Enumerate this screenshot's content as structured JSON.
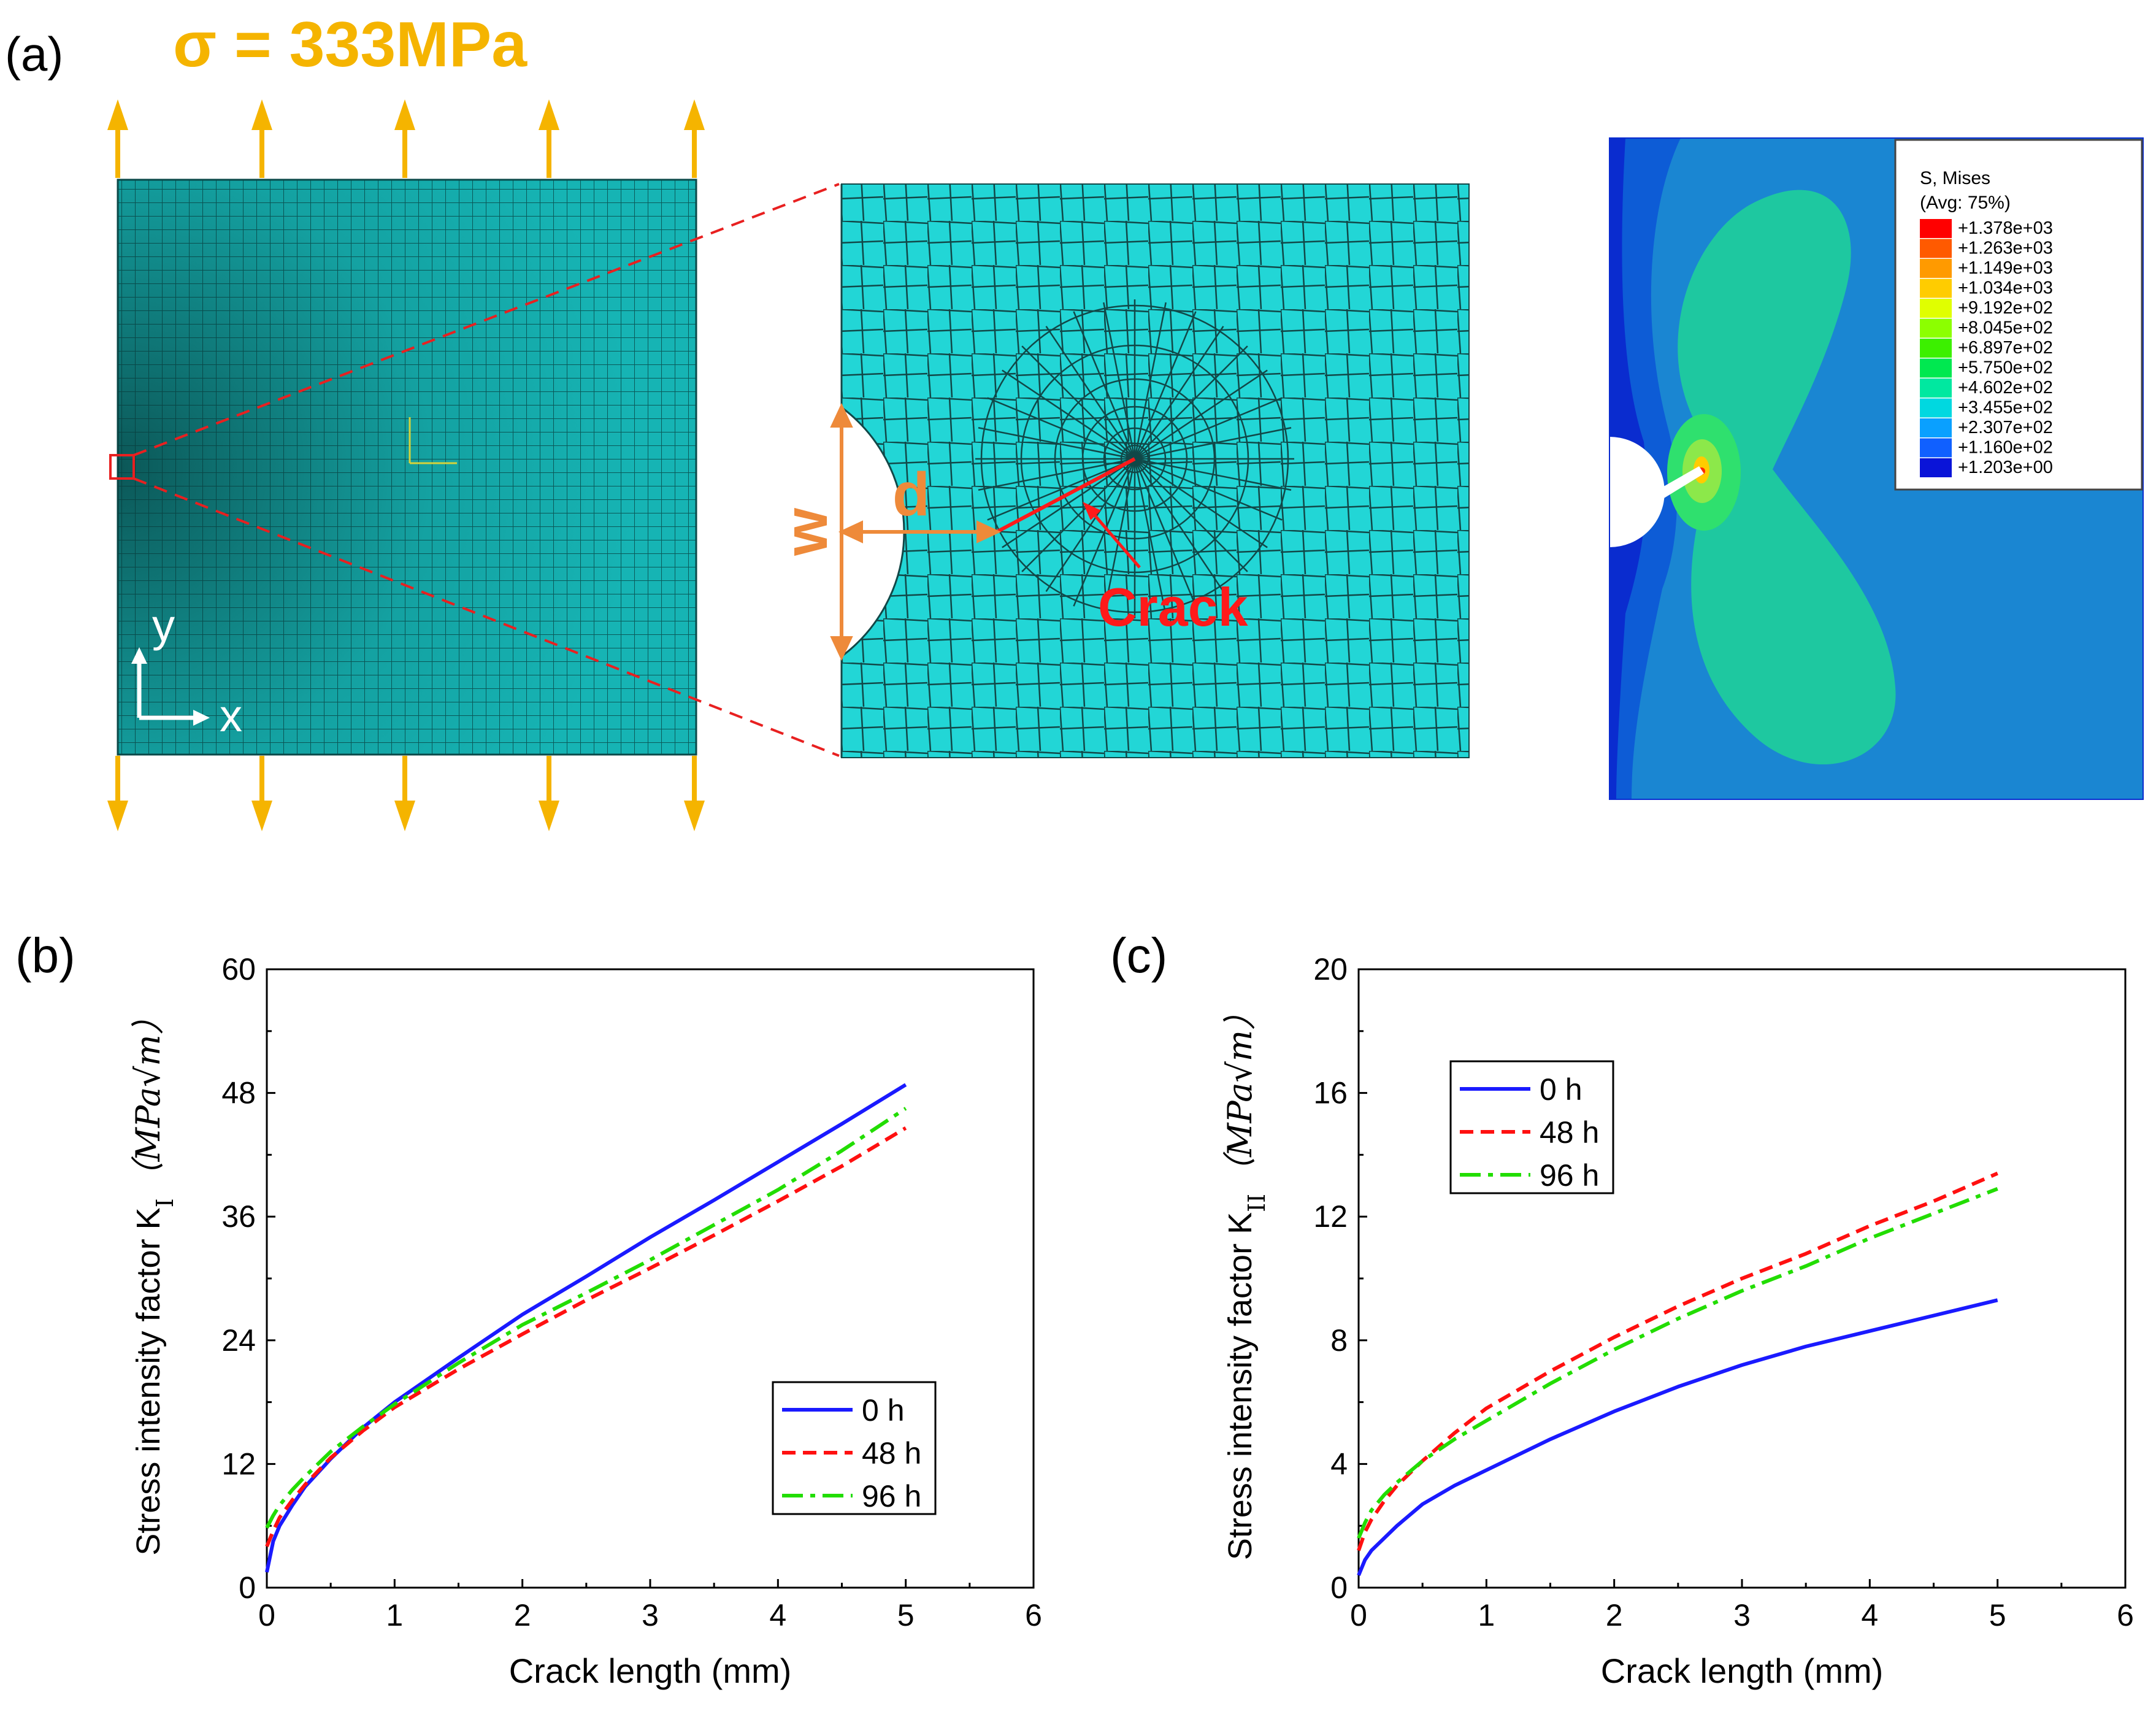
{
  "panel_a": {
    "label": "(a)",
    "load_label": "σ = 333MPa",
    "axis_y": "y",
    "axis_x": "x",
    "dim_w": "w",
    "dim_d": "d",
    "crack_label": "Crack",
    "legend": {
      "title": "S, Mises",
      "subtitle": "(Avg: 75%)",
      "entries": [
        "+1.378e+03",
        "+1.263e+03",
        "+1.149e+03",
        "+1.034e+03",
        "+9.192e+02",
        "+8.045e+02",
        "+6.897e+02",
        "+5.750e+02",
        "+4.602e+02",
        "+3.455e+02",
        "+2.307e+02",
        "+1.160e+02",
        "+1.203e+00"
      ],
      "colors": [
        "#ff0000",
        "#ff5a00",
        "#ff9a00",
        "#ffcc00",
        "#e0ff00",
        "#8cff00",
        "#3cf000",
        "#00e850",
        "#00e8a0",
        "#00d8e0",
        "#0aa0ff",
        "#1060ff",
        "#0a14d8"
      ]
    },
    "colors": {
      "mesh_bg": "#16b4b4",
      "mesh_zoom": "#22d6d6",
      "arrow": "#f5b400",
      "dim": "#ee8a3a",
      "crack": "#ff1a1a",
      "field_base": "#1a86d2"
    }
  },
  "chart_data": [
    {
      "panel": "(b)",
      "type": "line",
      "title": "",
      "xlabel": "Crack length (mm)",
      "ylabel_prefix": "Stress intensity factor K",
      "ylabel_sub": "I",
      "ylabel_units": "（MPa√m）",
      "xlim": [
        0,
        6
      ],
      "ylim": [
        0,
        60
      ],
      "xticks": [
        "0",
        "1",
        "2",
        "3",
        "4",
        "5",
        "6"
      ],
      "yticks": [
        "0",
        "12",
        "24",
        "36",
        "48",
        "60"
      ],
      "legend_position": "lower-right",
      "x": [
        0.0,
        0.05,
        0.1,
        0.2,
        0.3,
        0.5,
        0.75,
        1.0,
        1.5,
        2.0,
        2.5,
        3.0,
        3.5,
        4.0,
        4.5,
        5.0
      ],
      "series": [
        {
          "name": "0 h",
          "color": "#1a1aff",
          "dash": "solid",
          "values": [
            1.5,
            4.5,
            6.0,
            8.0,
            9.8,
            12.5,
            15.5,
            18.0,
            22.3,
            26.5,
            30.2,
            34.0,
            37.6,
            41.3,
            45.0,
            48.8
          ]
        },
        {
          "name": "48 h",
          "color": "#ff1010",
          "dash": "dash",
          "values": [
            4.0,
            5.5,
            6.8,
            8.5,
            10.0,
            12.6,
            15.2,
            17.5,
            21.2,
            24.6,
            27.9,
            31.0,
            34.2,
            37.5,
            40.9,
            44.6
          ]
        },
        {
          "name": "96 h",
          "color": "#22dd00",
          "dash": "dashdot",
          "values": [
            5.8,
            7.0,
            8.0,
            9.5,
            10.8,
            13.2,
            15.6,
            17.8,
            21.8,
            25.5,
            28.6,
            31.8,
            35.2,
            38.6,
            42.4,
            46.5
          ]
        }
      ]
    },
    {
      "panel": "(c)",
      "type": "line",
      "title": "",
      "xlabel": "Crack length (mm)",
      "ylabel_prefix": "Stress intensity factor K",
      "ylabel_sub": "II",
      "ylabel_units": "（MPa√m）",
      "xlim": [
        0,
        6
      ],
      "ylim": [
        0,
        20
      ],
      "xticks": [
        "0",
        "1",
        "2",
        "3",
        "4",
        "5",
        "6"
      ],
      "yticks": [
        "0",
        "4",
        "8",
        "12",
        "16",
        "20"
      ],
      "legend_position": "top-left",
      "x": [
        0.0,
        0.05,
        0.1,
        0.2,
        0.3,
        0.5,
        0.75,
        1.0,
        1.5,
        2.0,
        2.5,
        3.0,
        3.5,
        4.0,
        4.5,
        5.0
      ],
      "series": [
        {
          "name": "0 h",
          "color": "#1a1aff",
          "dash": "solid",
          "values": [
            0.4,
            0.9,
            1.2,
            1.6,
            2.0,
            2.7,
            3.3,
            3.8,
            4.8,
            5.7,
            6.5,
            7.2,
            7.8,
            8.3,
            8.8,
            9.3
          ]
        },
        {
          "name": "48 h",
          "color": "#ff1010",
          "dash": "dash",
          "values": [
            1.2,
            1.8,
            2.2,
            2.8,
            3.3,
            4.1,
            5.0,
            5.8,
            7.0,
            8.1,
            9.1,
            10.0,
            10.8,
            11.7,
            12.5,
            13.4
          ]
        },
        {
          "name": "96 h",
          "color": "#22dd00",
          "dash": "dashdot",
          "values": [
            1.6,
            2.1,
            2.5,
            3.0,
            3.4,
            4.1,
            4.8,
            5.4,
            6.6,
            7.7,
            8.7,
            9.6,
            10.4,
            11.3,
            12.1,
            12.9
          ]
        }
      ]
    }
  ]
}
